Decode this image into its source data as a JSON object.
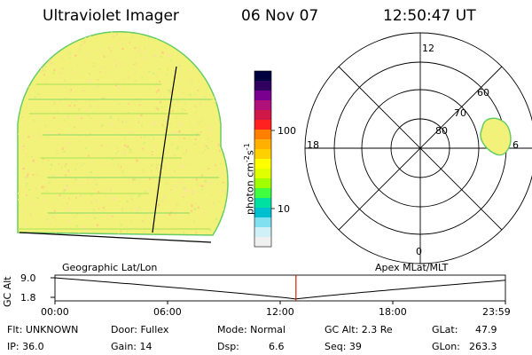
{
  "header": {
    "instrument": "Ultraviolet Imager",
    "date": "06 Nov 07",
    "time": "12:50:47 UT"
  },
  "colorbar": {
    "unit_label": "photon cm",
    "unit_sup1": "-2",
    "unit_mid": "s",
    "unit_sup2": "-1",
    "tick_100": "100",
    "tick_10": "10",
    "colors": [
      "#000040",
      "#300060",
      "#7a0090",
      "#b0107a",
      "#d01848",
      "#ff2020",
      "#ff8000",
      "#ffb000",
      "#ffd000",
      "#ffff00",
      "#e0ff00",
      "#a0ff00",
      "#40ff40",
      "#00e0a0",
      "#00c0d0",
      "#80e0f0",
      "#d0f0f8",
      "#f0f0f0"
    ]
  },
  "polar_plot": {
    "label_12": "12",
    "label_18": "18",
    "label_6": "6",
    "label_0": "0",
    "lat_60": "60",
    "lat_70": "70",
    "lat_80": "80"
  },
  "altitude_strip": {
    "ylabel": "GC Alt",
    "y_top": "9.0",
    "y_bottom": "1.8",
    "left_title": "Geographic Lat/Lon",
    "right_title": "Apex  MLat/MLT",
    "time_ticks": [
      "00:00",
      "06:00",
      "12:00",
      "18:00",
      "23:59"
    ],
    "current_time_fraction": 0.535
  },
  "info": {
    "flt": "Flt: UNKNOWN",
    "ip": "IP: 36.0",
    "door": "Door: Fullex",
    "gain": "Gain: 14",
    "mode": "Mode: Normal",
    "dsp_label": "Dsp:",
    "dsp_value": "6.6",
    "gc_alt": "GC Alt: 2.3 Re",
    "seq": "Seq: 39",
    "glat_label": "GLat:",
    "glat_value": "47.9",
    "glon_label": "GLon:",
    "glon_value": "263.3"
  },
  "colors": {
    "disk_fill": "#f2f27a",
    "disk_edge": "#66cc66",
    "marker": "#cc2200"
  }
}
